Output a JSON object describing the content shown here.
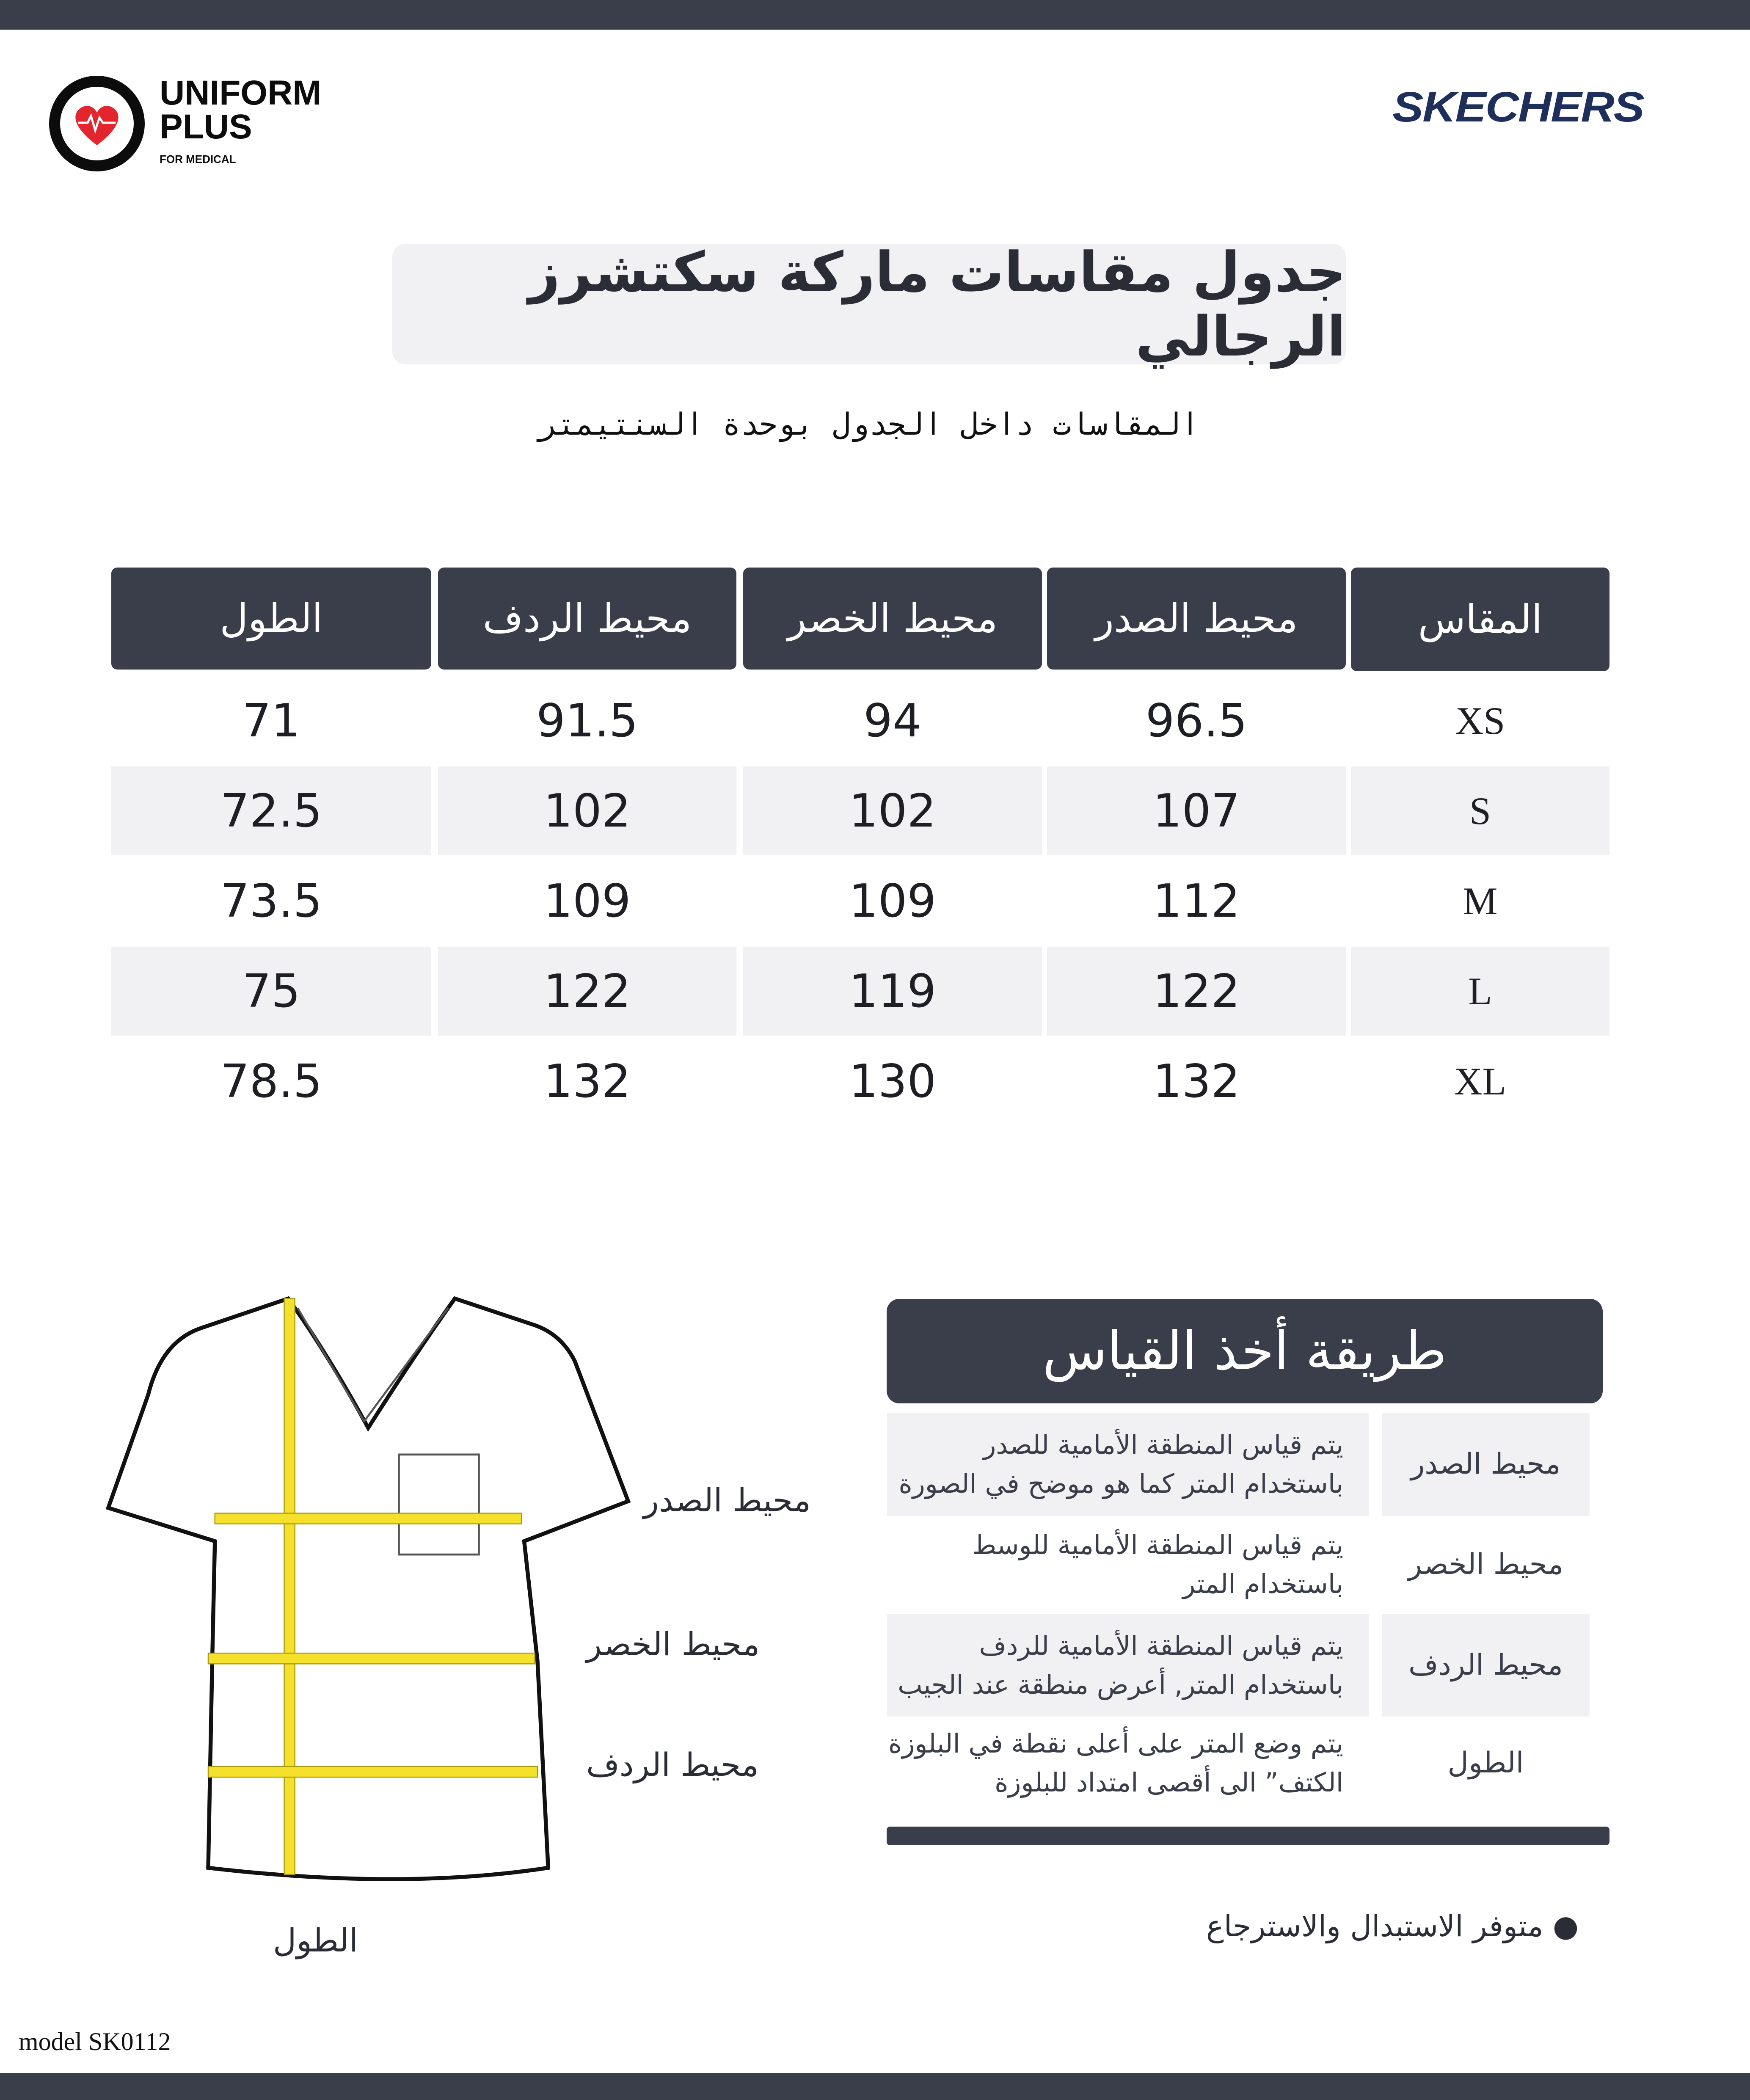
{
  "brand_left": {
    "name": "UNIFORM",
    "name2": "PLUS",
    "tagline": "FOR MEDICAL"
  },
  "brand_right": {
    "name": "SKECHERS"
  },
  "title": "جدول مقاسات ماركة سكتشرز الرجالي",
  "subtitle": "المقاسات داخل الجدول بوحدة السنتيمتر",
  "table": {
    "headers": [
      "المقاس",
      "محيط الصدر",
      "محيط الخصر",
      "محيط الردف",
      "الطول"
    ],
    "rows": [
      [
        "XS",
        "96.5",
        "94",
        "91.5",
        "71"
      ],
      [
        "S",
        "107",
        "102",
        "102",
        "72.5"
      ],
      [
        "M",
        "112",
        "109",
        "109",
        "73.5"
      ],
      [
        "L",
        "122",
        "119",
        "122",
        "75"
      ],
      [
        "XL",
        "132",
        "130",
        "132",
        "78.5"
      ]
    ]
  },
  "diagram_labels": {
    "chest": "محيط الصدر",
    "waist": "محيط الخصر",
    "hip": "محيط الردف",
    "length": "الطول"
  },
  "method": {
    "title": "طريقة أخذ القياس",
    "rows": [
      {
        "label": "محيط الصدر",
        "line1": "يتم قياس المنطقة الأمامية للصدر",
        "line2": "باستخدام المتر كما هو موضح في الصورة"
      },
      {
        "label": "محيط الخصر",
        "line1": "يتم قياس المنطقة الأمامية للوسط",
        "line2": "باستخدام المتر"
      },
      {
        "label": "محيط الردف",
        "line1": "يتم قياس المنطقة الأمامية للردف",
        "line2": "باستخدام المتر, أعرض منطقة عند الجيب"
      },
      {
        "label": "الطول",
        "line1": "يتم وضع المتر على أعلى نقطة في البلوزة",
        "line2": "الكتف”  الى أقصى امتداد للبلوزة"
      }
    ]
  },
  "note": "متوفر الاستبدال والاسترجاع",
  "model": "model SK0112",
  "colors": {
    "dark": "#3a3d4a",
    "shade": "#f1f1f3",
    "tape": "#f5e12b",
    "brand_navy": "#1e2f5c",
    "heart": "#e3262d"
  }
}
